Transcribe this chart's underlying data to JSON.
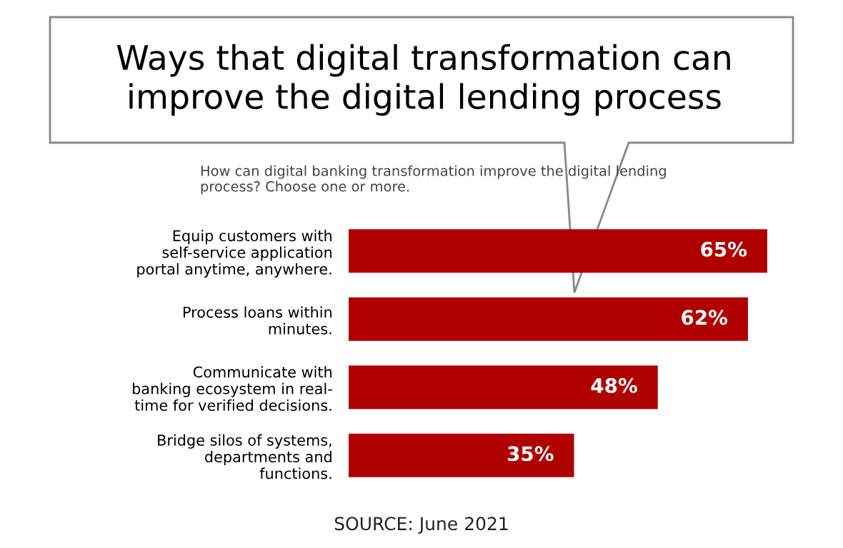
{
  "chart_data": {
    "type": "bar",
    "orientation": "horizontal",
    "title": "Ways that digital transformation can\nimprove the digital lending process",
    "subtitle": "How can digital banking transformation improve the digital lending\nprocess? Choose one or more.",
    "categories": [
      "Equip customers with\nself-service application\nportal anytime, anywhere.",
      "Process loans within\nminutes.",
      "Communicate with\nbanking ecosystem in real-\ntime for verified decisions.",
      "Bridge silos of systems,\ndepartments and\nfunctions."
    ],
    "values": [
      65,
      62,
      48,
      35
    ],
    "value_labels": [
      "65%",
      "62%",
      "48%",
      "35%"
    ],
    "color": "#b00000",
    "annotations": [
      "SOURCE: June 2021"
    ]
  }
}
